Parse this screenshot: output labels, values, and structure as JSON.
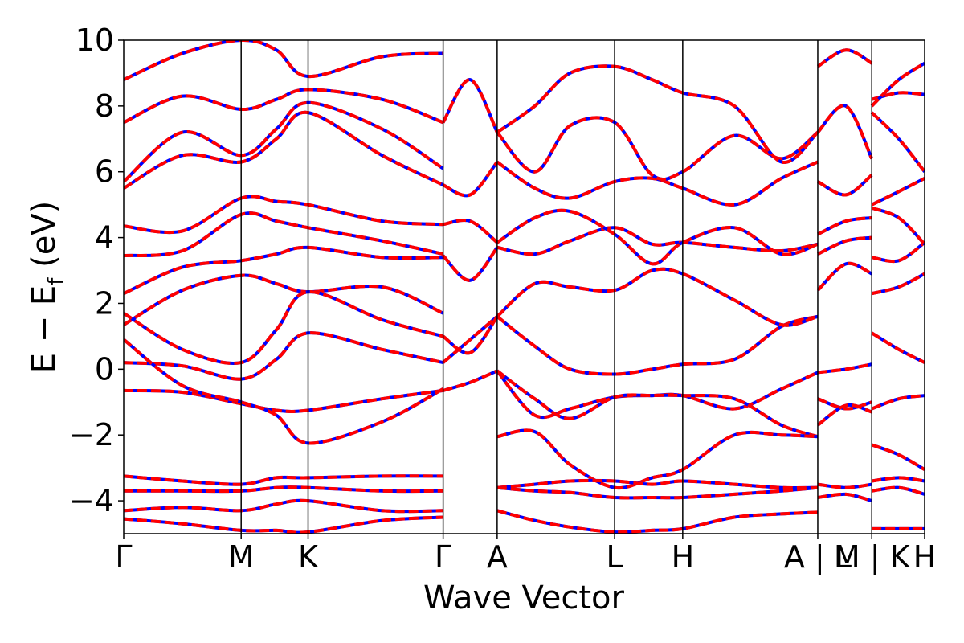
{
  "chart_data": {
    "type": "line",
    "title": "",
    "xlabel": "Wave Vector",
    "ylabel_main": "E − E",
    "ylabel_sub": "f",
    "ylabel_unit": " (eV)",
    "ylim": [
      -5,
      10
    ],
    "y_ticks": [
      -4,
      -2,
      0,
      2,
      4,
      6,
      8,
      10
    ],
    "y_tick_labels": [
      "−4",
      "−2",
      "0",
      "2",
      "4",
      "6",
      "8",
      "10"
    ],
    "x_range": [
      0,
      6.82
    ],
    "kpoints": [
      {
        "label": "Γ",
        "x": 0.0
      },
      {
        "label": "M",
        "x": 1.0
      },
      {
        "label": "K",
        "x": 1.57
      },
      {
        "label": "Γ",
        "x": 2.72
      },
      {
        "label": "A",
        "x": 3.18
      },
      {
        "label": "L",
        "x": 4.18
      },
      {
        "label": "H",
        "x": 4.76
      },
      {
        "label": "A | L",
        "x": 5.91
      },
      {
        "label": "M | K",
        "x": 6.37
      },
      {
        "label": "H",
        "x": 6.82
      }
    ],
    "series_colors": {
      "blue": "#0000ff",
      "red": "#ff0000"
    },
    "bands": [
      {
        "x": [
          0,
          0.5,
          1.0,
          1.3,
          1.57,
          2.2,
          2.72
        ],
        "y": [
          -0.65,
          -0.7,
          -1.05,
          -1.25,
          -1.25,
          -0.9,
          -0.65
        ]
      },
      {
        "x": [
          0,
          0.5,
          1.0,
          1.3,
          1.57,
          2.2,
          2.72
        ],
        "y": [
          0.2,
          0.1,
          -0.3,
          0.3,
          1.1,
          0.6,
          0.2
        ]
      },
      {
        "x": [
          0,
          0.5,
          1.0,
          1.3,
          1.57,
          2.2,
          2.72
        ],
        "y": [
          0.9,
          -0.5,
          -1.0,
          -1.4,
          -2.25,
          -1.6,
          -0.6
        ]
      },
      {
        "x": [
          0,
          0.5,
          1.0,
          1.3,
          1.57,
          2.2,
          2.72
        ],
        "y": [
          1.35,
          2.4,
          2.85,
          2.6,
          2.35,
          2.5,
          1.7
        ]
      },
      {
        "x": [
          0,
          0.5,
          1.0,
          1.3,
          1.57,
          2.2,
          2.72
        ],
        "y": [
          1.7,
          0.6,
          0.2,
          1.2,
          2.35,
          1.5,
          1.0
        ]
      },
      {
        "x": [
          0,
          0.5,
          1.0,
          1.3,
          1.57,
          2.2,
          2.72
        ],
        "y": [
          2.3,
          3.1,
          3.3,
          3.5,
          3.7,
          3.4,
          3.4
        ]
      },
      {
        "x": [
          0,
          0.5,
          1.0,
          1.3,
          1.57,
          2.2,
          2.72
        ],
        "y": [
          3.45,
          3.6,
          4.7,
          4.5,
          4.3,
          3.9,
          3.5
        ]
      },
      {
        "x": [
          0,
          0.5,
          1.0,
          1.3,
          1.57,
          2.2,
          2.72
        ],
        "y": [
          4.35,
          4.2,
          5.2,
          5.1,
          5.0,
          4.5,
          4.4
        ]
      },
      {
        "x": [
          0,
          0.5,
          1.0,
          1.3,
          1.57,
          2.2,
          2.72
        ],
        "y": [
          5.5,
          6.5,
          6.3,
          7.0,
          7.8,
          6.5,
          5.6
        ]
      },
      {
        "x": [
          0,
          0.5,
          1.0,
          1.3,
          1.57,
          2.2,
          2.72
        ],
        "y": [
          5.7,
          7.2,
          6.5,
          7.3,
          8.1,
          7.3,
          6.1
        ]
      },
      {
        "x": [
          0,
          0.5,
          1.0,
          1.3,
          1.57,
          2.2,
          2.72
        ],
        "y": [
          7.5,
          8.3,
          7.9,
          8.2,
          8.5,
          8.2,
          7.5
        ]
      },
      {
        "x": [
          0,
          0.5,
          1.0,
          1.3,
          1.57,
          2.2,
          2.72
        ],
        "y": [
          8.8,
          9.6,
          10.0,
          9.7,
          8.9,
          9.5,
          9.6
        ]
      },
      {
        "x": [
          0,
          0.5,
          1.0,
          1.3,
          1.57,
          2.2,
          2.72
        ],
        "y": [
          -3.25,
          -3.4,
          -3.5,
          -3.3,
          -3.3,
          -3.25,
          -3.25
        ]
      },
      {
        "x": [
          0,
          0.5,
          1.0,
          1.3,
          1.57,
          2.2,
          2.72
        ],
        "y": [
          -3.7,
          -3.7,
          -3.7,
          -3.6,
          -3.6,
          -3.7,
          -3.7
        ]
      },
      {
        "x": [
          0,
          0.5,
          1.0,
          1.3,
          1.57,
          2.2,
          2.72
        ],
        "y": [
          -4.3,
          -4.2,
          -4.3,
          -4.1,
          -4.0,
          -4.3,
          -4.3
        ]
      },
      {
        "x": [
          0,
          0.5,
          1.0,
          1.3,
          1.57,
          2.2,
          2.72
        ],
        "y": [
          -4.55,
          -4.7,
          -4.9,
          -4.9,
          -4.95,
          -4.6,
          -4.5
        ]
      },
      {
        "x": [
          2.72,
          2.95,
          3.18
        ],
        "y": [
          0.2,
          0.9,
          1.6
        ]
      },
      {
        "x": [
          2.72,
          2.95,
          3.18
        ],
        "y": [
          1.0,
          0.5,
          1.6
        ]
      },
      {
        "x": [
          2.72,
          2.95,
          3.18
        ],
        "y": [
          -0.65,
          -0.4,
          -0.05
        ]
      },
      {
        "x": [
          2.72,
          2.95,
          3.18
        ],
        "y": [
          3.45,
          2.7,
          3.7
        ]
      },
      {
        "x": [
          2.72,
          2.95,
          3.18
        ],
        "y": [
          4.4,
          4.5,
          3.85
        ]
      },
      {
        "x": [
          2.72,
          2.95,
          3.18
        ],
        "y": [
          5.6,
          5.3,
          6.3
        ]
      },
      {
        "x": [
          2.72,
          2.95,
          3.18
        ],
        "y": [
          7.5,
          8.8,
          7.2
        ]
      },
      {
        "x": [
          3.18,
          3.5,
          3.8,
          4.18,
          4.5,
          4.76,
          5.2,
          5.6,
          5.91
        ],
        "y": [
          -0.05,
          -1.4,
          -1.2,
          -0.85,
          -0.8,
          -0.8,
          -1.2,
          -0.6,
          -0.1
        ]
      },
      {
        "x": [
          3.18,
          3.5,
          3.8,
          4.18,
          4.5,
          4.76,
          5.2,
          5.6,
          5.91
        ],
        "y": [
          1.6,
          0.7,
          0.0,
          -0.15,
          0.0,
          0.15,
          0.3,
          1.3,
          1.6
        ]
      },
      {
        "x": [
          3.18,
          3.5,
          3.8,
          4.18,
          4.5,
          4.76,
          5.2,
          5.6,
          5.91
        ],
        "y": [
          1.6,
          2.6,
          2.5,
          2.4,
          3.0,
          2.9,
          2.1,
          1.35,
          1.6
        ]
      },
      {
        "x": [
          3.18,
          3.5,
          3.8,
          4.18,
          4.5,
          4.76,
          5.2,
          5.6,
          5.91
        ],
        "y": [
          -0.05,
          -0.9,
          -1.5,
          -0.85,
          -0.8,
          -0.8,
          -0.9,
          -1.7,
          -2.05
        ]
      },
      {
        "x": [
          3.18,
          3.5,
          3.8,
          4.18,
          4.5,
          4.76,
          5.2,
          5.6,
          5.91
        ],
        "y": [
          -2.05,
          -1.9,
          -2.9,
          -3.6,
          -3.3,
          -3.05,
          -2.0,
          -2.0,
          -2.05
        ]
      },
      {
        "x": [
          3.18,
          3.5,
          3.8,
          4.18,
          4.5,
          4.76,
          5.2,
          5.6,
          5.91
        ],
        "y": [
          3.7,
          3.5,
          3.9,
          4.3,
          3.8,
          3.85,
          3.7,
          3.6,
          3.8
        ]
      },
      {
        "x": [
          3.18,
          3.5,
          3.8,
          4.18,
          4.5,
          4.76,
          5.2,
          5.6,
          5.91
        ],
        "y": [
          3.85,
          4.6,
          4.8,
          4.1,
          3.2,
          3.85,
          4.3,
          3.5,
          3.8
        ]
      },
      {
        "x": [
          3.18,
          3.5,
          3.8,
          4.18,
          4.5,
          4.76,
          5.2,
          5.6,
          5.91
        ],
        "y": [
          6.3,
          5.5,
          5.2,
          5.7,
          5.8,
          5.5,
          5.0,
          5.8,
          6.3
        ]
      },
      {
        "x": [
          3.18,
          3.5,
          3.8,
          4.18,
          4.5,
          4.76,
          5.2,
          5.6,
          5.91
        ],
        "y": [
          7.2,
          6.0,
          7.4,
          7.5,
          5.9,
          6.0,
          7.1,
          6.4,
          7.2
        ]
      },
      {
        "x": [
          3.18,
          3.5,
          3.8,
          4.18,
          4.5,
          4.76,
          5.2,
          5.6,
          5.91
        ],
        "y": [
          7.2,
          8.0,
          9.0,
          9.2,
          8.8,
          8.4,
          8.0,
          6.3,
          7.2
        ]
      },
      {
        "x": [
          3.18,
          3.5,
          3.8,
          4.18,
          4.5,
          4.76,
          5.2,
          5.6,
          5.91
        ],
        "y": [
          -3.6,
          -3.5,
          -3.4,
          -3.4,
          -3.5,
          -3.4,
          -3.5,
          -3.6,
          -3.6
        ]
      },
      {
        "x": [
          3.18,
          3.5,
          3.8,
          4.18,
          4.5,
          4.76,
          5.2,
          5.6,
          5.91
        ],
        "y": [
          -3.6,
          -3.7,
          -3.75,
          -3.9,
          -3.9,
          -3.9,
          -3.8,
          -3.7,
          -3.6
        ]
      },
      {
        "x": [
          3.18,
          3.5,
          3.8,
          4.18,
          4.5,
          4.76,
          5.2,
          5.6,
          5.91
        ],
        "y": [
          -4.3,
          -4.6,
          -4.8,
          -4.95,
          -4.9,
          -4.85,
          -4.5,
          -4.4,
          -4.35
        ]
      },
      {
        "x": [
          5.91,
          6.15,
          6.37
        ],
        "y": [
          -0.1,
          0.0,
          0.15
        ]
      },
      {
        "x": [
          5.91,
          6.15,
          6.37
        ],
        "y": [
          -0.9,
          -1.2,
          -1.0
        ]
      },
      {
        "x": [
          5.91,
          6.15,
          6.37
        ],
        "y": [
          -1.7,
          -1.1,
          -1.3
        ]
      },
      {
        "x": [
          5.91,
          6.15,
          6.37
        ],
        "y": [
          2.4,
          3.2,
          2.9
        ]
      },
      {
        "x": [
          5.91,
          6.15,
          6.37
        ],
        "y": [
          3.5,
          3.9,
          4.0
        ]
      },
      {
        "x": [
          5.91,
          6.15,
          6.37
        ],
        "y": [
          4.1,
          4.5,
          4.6
        ]
      },
      {
        "x": [
          5.91,
          6.15,
          6.37
        ],
        "y": [
          5.7,
          5.3,
          5.9
        ]
      },
      {
        "x": [
          5.91,
          6.15,
          6.37
        ],
        "y": [
          7.2,
          8.0,
          6.4
        ]
      },
      {
        "x": [
          5.91,
          6.15,
          6.37
        ],
        "y": [
          9.2,
          9.7,
          9.3
        ]
      },
      {
        "x": [
          5.91,
          6.15,
          6.37
        ],
        "y": [
          -3.5,
          -3.6,
          -3.5
        ]
      },
      {
        "x": [
          5.91,
          6.15,
          6.37
        ],
        "y": [
          -3.9,
          -3.8,
          -4.0
        ]
      },
      {
        "x": [
          6.37,
          6.6,
          6.82
        ],
        "y": [
          -1.2,
          -0.9,
          -0.8
        ]
      },
      {
        "x": [
          6.37,
          6.6,
          6.82
        ],
        "y": [
          1.1,
          0.6,
          0.2
        ]
      },
      {
        "x": [
          6.37,
          6.6,
          6.82
        ],
        "y": [
          -2.3,
          -2.6,
          -3.05
        ]
      },
      {
        "x": [
          6.37,
          6.6,
          6.82
        ],
        "y": [
          2.3,
          2.5,
          2.9
        ]
      },
      {
        "x": [
          6.37,
          6.6,
          6.82
        ],
        "y": [
          3.4,
          3.3,
          3.85
        ]
      },
      {
        "x": [
          6.37,
          6.6,
          6.82
        ],
        "y": [
          4.9,
          4.6,
          3.8
        ]
      },
      {
        "x": [
          6.37,
          6.6,
          6.82
        ],
        "y": [
          5.0,
          5.4,
          5.8
        ]
      },
      {
        "x": [
          6.37,
          6.6,
          6.82
        ],
        "y": [
          7.8,
          7.0,
          6.0
        ]
      },
      {
        "x": [
          6.37,
          6.6,
          6.82
        ],
        "y": [
          8.2,
          8.4,
          8.35
        ]
      },
      {
        "x": [
          6.37,
          6.6,
          6.82
        ],
        "y": [
          8.0,
          8.8,
          9.3
        ]
      },
      {
        "x": [
          6.37,
          6.6,
          6.82
        ],
        "y": [
          -3.4,
          -3.3,
          -3.4
        ]
      },
      {
        "x": [
          6.37,
          6.6,
          6.82
        ],
        "y": [
          -3.7,
          -3.6,
          -3.8
        ]
      },
      {
        "x": [
          6.37,
          6.6,
          6.82
        ],
        "y": [
          -4.85,
          -4.85,
          -4.85
        ]
      }
    ]
  }
}
